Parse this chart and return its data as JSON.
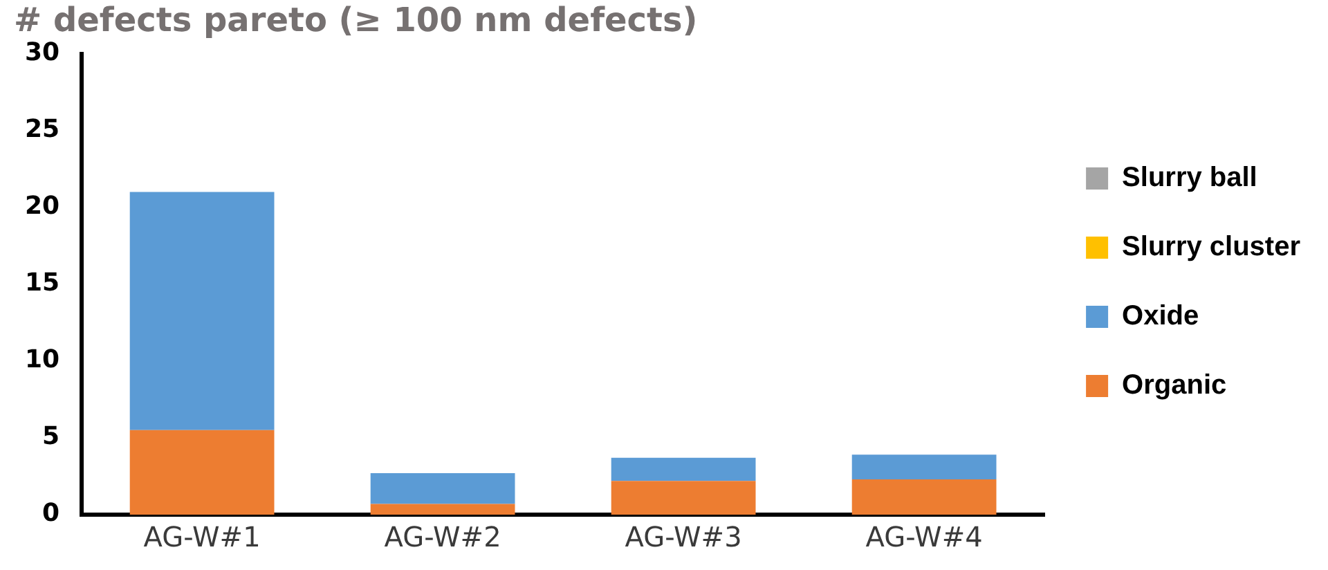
{
  "chart_data": {
    "type": "bar",
    "stacked": true,
    "title": "# defects pareto (≥ 100 nm defects)",
    "categories": [
      "AG-W#1",
      "AG-W#2",
      "AG-W#3",
      "AG-W#4"
    ],
    "series": [
      {
        "name": "Organic",
        "color": "#ed7d31",
        "values": [
          5.5,
          0.7,
          2.2,
          2.3
        ]
      },
      {
        "name": "Oxide",
        "color": "#5b9bd5",
        "values": [
          15.5,
          2.0,
          1.5,
          1.6
        ]
      },
      {
        "name": "Slurry cluster",
        "color": "#ffc000",
        "values": [
          0,
          0,
          0,
          0
        ]
      },
      {
        "name": "Slurry ball",
        "color": "#a5a5a5",
        "values": [
          0,
          0,
          0,
          0
        ]
      }
    ],
    "ylim": [
      0,
      30
    ],
    "yticks": [
      0,
      5,
      10,
      15,
      20,
      25,
      30
    ],
    "grid": false,
    "legend": "right"
  }
}
